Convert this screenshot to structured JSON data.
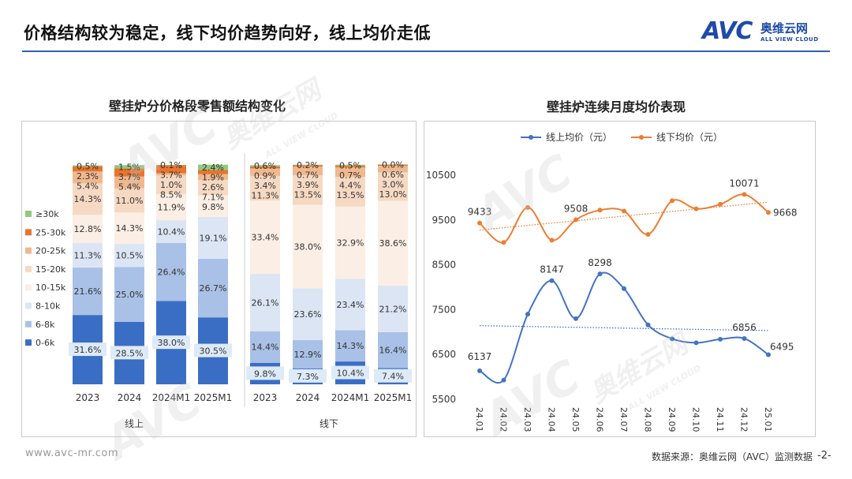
{
  "page": {
    "title": "价格结构较为稳定，线下均价趋势向好，线上均价走低",
    "footer_url": "www.avc-mr.com",
    "footer_source": "数据来源：奥维云网（AVC）监测数据",
    "page_number": "-2-",
    "brand_color": "#1f4aa8",
    "rule_color": "#2f5fb3"
  },
  "logo": {
    "mark": "AVC",
    "name_cn": "奥维云网",
    "name_en": "ALL VIEW CLOUD"
  },
  "watermark": {
    "mark": "AVC",
    "name_cn": "奥维云网",
    "name_en": "ALL VIEW CLOUD"
  },
  "chart_data": [
    {
      "type": "bar",
      "stacked": true,
      "percent": true,
      "title": "壁挂炉分价格段零售额结构变化",
      "legend_position": "left",
      "groups": [
        {
          "label": "线上",
          "categories": [
            "2023",
            "2024",
            "2024M1",
            "2025M1"
          ]
        },
        {
          "label": "线下",
          "categories": [
            "2023",
            "2024",
            "2024M1",
            "2025M1"
          ]
        }
      ],
      "series": [
        {
          "name": "0-6k",
          "color": "#3a6ec4",
          "values": [
            31.6,
            28.5,
            38.0,
            30.5,
            9.8,
            7.3,
            10.4,
            7.4
          ],
          "labels": [
            "31.6%",
            "28.5%",
            "38.0%",
            "30.5%",
            "9.8%",
            "7.3%",
            "10.4%",
            "7.4%"
          ]
        },
        {
          "name": "6-8k",
          "color": "#a9c1e6",
          "values": [
            21.6,
            25.0,
            26.4,
            26.7,
            14.4,
            12.9,
            14.3,
            16.4
          ],
          "labels": [
            "21.6%",
            "25.0%",
            "26.4%",
            "26.7%",
            "14.4%",
            "12.9%",
            "14.3%",
            "16.4%"
          ]
        },
        {
          "name": "8-10k",
          "color": "#dbe5f4",
          "values": [
            11.3,
            10.5,
            10.4,
            19.1,
            26.1,
            23.6,
            23.4,
            21.2
          ],
          "labels": [
            "11.3%",
            "10.5%",
            "10.4%",
            "19.1%",
            "26.1%",
            "23.6%",
            "23.4%",
            "21.2%"
          ]
        },
        {
          "name": "10-15k",
          "color": "#fbeee4",
          "values": [
            12.8,
            14.3,
            11.9,
            9.8,
            33.4,
            38.0,
            32.9,
            38.6
          ],
          "labels": [
            "12.8%",
            "14.3%",
            "11.9%",
            "9.8%",
            "33.4%",
            "38.0%",
            "32.9%",
            "38.6%"
          ]
        },
        {
          "name": "15-20k",
          "color": "#f6d9c3",
          "values": [
            14.3,
            11.0,
            8.5,
            7.1,
            11.3,
            13.5,
            13.5,
            13.0
          ],
          "labels": [
            "14.3%",
            "11.0%",
            "8.5%",
            "7.1%",
            "11.3%",
            "13.5%",
            "13.5%",
            "13.0%"
          ]
        },
        {
          "name": "20-25k",
          "color": "#efb88f",
          "values": [
            5.4,
            5.4,
            1.0,
            2.6,
            3.4,
            3.9,
            4.4,
            3.0
          ],
          "labels": [
            "5.4%",
            "5.4%",
            "1.0%",
            "2.6%",
            "3.4%",
            "3.9%",
            "4.4%",
            "3.0%"
          ]
        },
        {
          "name": "25-30k",
          "color": "#e7742f",
          "values": [
            2.3,
            3.7,
            3.7,
            1.9,
            0.9,
            0.7,
            0.7,
            0.6
          ],
          "labels": [
            "2.3%",
            "3.7%",
            "3.7%",
            "1.9%",
            "0.9%",
            "0.7%",
            "0.7%",
            "0.6%"
          ]
        },
        {
          "name": "≥30k",
          "color": "#92c97e",
          "values": [
            0.5,
            1.5,
            0.1,
            2.4,
            0.6,
            0.2,
            0.5,
            0.0
          ],
          "labels": [
            "0.5%",
            "1.5%",
            "0.1%",
            "2.4%",
            "0.6%",
            "0.2%",
            "0.5%",
            "0.0%"
          ]
        }
      ]
    },
    {
      "type": "line",
      "title": "壁挂炉连续月度均价表现",
      "x": [
        "24.01",
        "24.02",
        "24.03",
        "24.04",
        "24.05",
        "24.06",
        "24.07",
        "24.08",
        "24.09",
        "24.10",
        "24.11",
        "24.12",
        "25.01"
      ],
      "ylim": [
        5500,
        10500
      ],
      "yticks": [
        5500,
        6500,
        7500,
        8500,
        9500,
        10500
      ],
      "legend_position": "top",
      "trendline": true,
      "series": [
        {
          "name": "线上均价（元）",
          "color": "#4472c4",
          "values": [
            6137,
            5930,
            7400,
            8147,
            7300,
            8298,
            7970,
            7160,
            6850,
            6760,
            6840,
            6856,
            6495
          ],
          "labeled_points": {
            "0": "6137",
            "3": "8147",
            "5": "8298",
            "11": "6856",
            "12": "6495"
          }
        },
        {
          "name": "线下均价（元）",
          "color": "#ed7d31",
          "values": [
            9433,
            9000,
            9780,
            9050,
            9508,
            9720,
            9700,
            9180,
            9930,
            9750,
            9850,
            10071,
            9668
          ],
          "labeled_points": {
            "0": "9433",
            "4": "9508",
            "11": "10071",
            "12": "9668"
          }
        }
      ]
    }
  ]
}
